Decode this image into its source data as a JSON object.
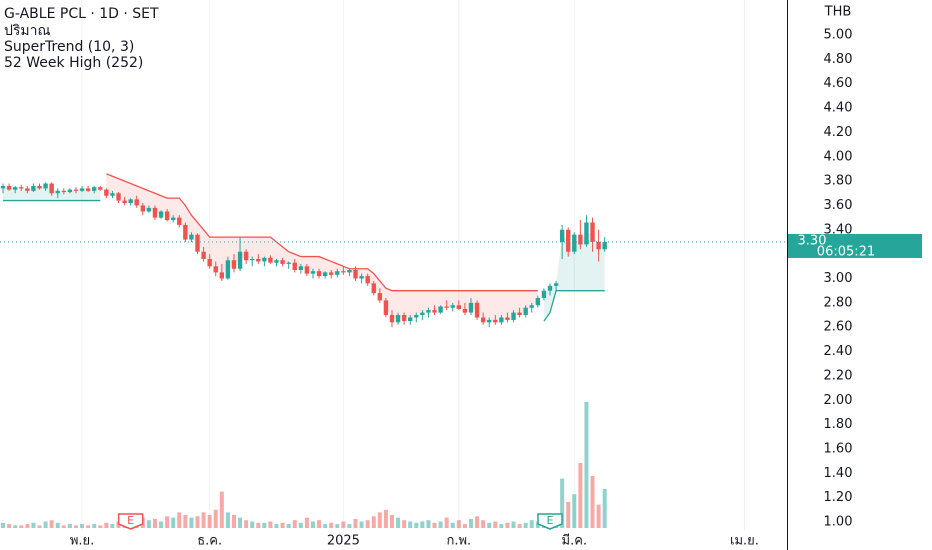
{
  "chart_data": {
    "type": "candlestick",
    "title": "G-ABLE PCL · 1D · SET",
    "legend_items": [
      "ปริมาณ",
      "SuperTrend (10, 3)",
      "52 Week High (252)"
    ],
    "currency": "THB",
    "up_color": "#26a69a",
    "down_color": "#ef5350",
    "ylim": [
      1,
      5
    ],
    "yticks": [
      {
        "value": 1,
        "label": "1.00"
      },
      {
        "value": 1.2,
        "label": "1.20"
      },
      {
        "value": 1.4,
        "label": "1.40"
      },
      {
        "value": 1.6,
        "label": "1.60"
      },
      {
        "value": 1.8,
        "label": "1.80"
      },
      {
        "value": 2,
        "label": "2.00"
      },
      {
        "value": 2.2,
        "label": "2.20"
      },
      {
        "value": 2.4,
        "label": "2.40"
      },
      {
        "value": 2.6,
        "label": "2.60"
      },
      {
        "value": 2.8,
        "label": "2.80"
      },
      {
        "value": 3,
        "label": "3.00"
      },
      {
        "value": 3.2,
        "label": "3.20"
      },
      {
        "value": 3.4,
        "label": "3.40"
      },
      {
        "value": 3.6,
        "label": "3.60"
      },
      {
        "value": 3.8,
        "label": "3.80"
      },
      {
        "value": 4,
        "label": "4.00"
      },
      {
        "value": 4.2,
        "label": "4.20"
      },
      {
        "value": 4.4,
        "label": "4.40"
      },
      {
        "value": 4.6,
        "label": "4.60"
      },
      {
        "value": 4.8,
        "label": "4.80"
      },
      {
        "value": 5,
        "label": "5.00"
      }
    ],
    "xlim": [
      -0.5,
      129
    ],
    "xticks": [
      {
        "value": 13,
        "label": "พ.ย."
      },
      {
        "value": 34,
        "label": "ธ.ค."
      },
      {
        "value": 56,
        "label": "2025"
      },
      {
        "value": 75,
        "label": "ก.พ."
      },
      {
        "value": 94,
        "label": "มี.ค."
      },
      {
        "value": 122,
        "label": "เม.ย."
      }
    ],
    "y2lim": [
      0,
      100
    ],
    "last_price": {
      "value": 3.3,
      "label": "3.30"
    },
    "countdown": "06:05:21",
    "events": [
      {
        "label": "E",
        "x": 21,
        "color": "#ef5350"
      },
      {
        "label": "E",
        "x": 90,
        "color": "#26a69a"
      }
    ],
    "candles": [
      [
        3.74,
        3.78,
        3.7,
        3.76,
        4
      ],
      [
        3.76,
        3.78,
        3.72,
        3.73,
        3
      ],
      [
        3.73,
        3.76,
        3.7,
        3.75,
        2
      ],
      [
        3.75,
        3.77,
        3.72,
        3.74,
        2
      ],
      [
        3.74,
        3.76,
        3.7,
        3.72,
        3
      ],
      [
        3.72,
        3.78,
        3.71,
        3.76,
        4
      ],
      [
        3.76,
        3.78,
        3.73,
        3.74,
        2
      ],
      [
        3.74,
        3.79,
        3.72,
        3.78,
        5
      ],
      [
        3.78,
        3.79,
        3.68,
        3.7,
        6
      ],
      [
        3.7,
        3.74,
        3.66,
        3.72,
        4
      ],
      [
        3.72,
        3.74,
        3.69,
        3.71,
        2
      ],
      [
        3.71,
        3.74,
        3.7,
        3.73,
        3
      ],
      [
        3.73,
        3.75,
        3.7,
        3.72,
        2
      ],
      [
        3.72,
        3.76,
        3.71,
        3.74,
        3
      ],
      [
        3.74,
        3.76,
        3.71,
        3.72,
        2
      ],
      [
        3.72,
        3.76,
        3.7,
        3.75,
        3
      ],
      [
        3.75,
        3.76,
        3.72,
        3.73,
        2
      ],
      [
        3.73,
        3.74,
        3.66,
        3.68,
        4
      ],
      [
        3.68,
        3.72,
        3.66,
        3.7,
        3
      ],
      [
        3.7,
        3.71,
        3.62,
        3.64,
        5
      ],
      [
        3.64,
        3.67,
        3.6,
        3.62,
        6
      ],
      [
        3.62,
        3.66,
        3.6,
        3.65,
        4
      ],
      [
        3.65,
        3.68,
        3.58,
        3.6,
        5
      ],
      [
        3.6,
        3.62,
        3.52,
        3.55,
        8
      ],
      [
        3.55,
        3.6,
        3.54,
        3.58,
        6
      ],
      [
        3.58,
        3.6,
        3.48,
        3.5,
        7
      ],
      [
        3.5,
        3.56,
        3.49,
        3.55,
        5
      ],
      [
        3.55,
        3.57,
        3.47,
        3.48,
        9
      ],
      [
        3.48,
        3.52,
        3.46,
        3.5,
        8
      ],
      [
        3.5,
        3.52,
        3.42,
        3.44,
        12
      ],
      [
        3.44,
        3.46,
        3.3,
        3.32,
        10
      ],
      [
        3.32,
        3.38,
        3.3,
        3.36,
        8
      ],
      [
        3.36,
        3.37,
        3.2,
        3.22,
        9
      ],
      [
        3.22,
        3.26,
        3.14,
        3.16,
        12
      ],
      [
        3.16,
        3.2,
        3.08,
        3.1,
        10
      ],
      [
        3.1,
        3.14,
        3.02,
        3.05,
        14
      ],
      [
        3.05,
        3.12,
        2.98,
        3.0,
        28
      ],
      [
        3.0,
        3.18,
        2.99,
        3.15,
        12
      ],
      [
        3.15,
        3.2,
        3.05,
        3.08,
        10
      ],
      [
        3.08,
        3.34,
        3.06,
        3.22,
        8
      ],
      [
        3.22,
        3.24,
        3.12,
        3.15,
        6
      ],
      [
        3.15,
        3.18,
        3.1,
        3.16,
        5
      ],
      [
        3.16,
        3.2,
        3.12,
        3.14,
        4
      ],
      [
        3.14,
        3.18,
        3.1,
        3.17,
        4
      ],
      [
        3.17,
        3.19,
        3.12,
        3.13,
        5
      ],
      [
        3.13,
        3.16,
        3.1,
        3.15,
        3
      ],
      [
        3.15,
        3.17,
        3.1,
        3.12,
        4
      ],
      [
        3.12,
        3.14,
        3.08,
        3.13,
        3
      ],
      [
        3.13,
        3.16,
        3.05,
        3.07,
        6
      ],
      [
        3.07,
        3.12,
        3.04,
        3.1,
        4
      ],
      [
        3.1,
        3.12,
        3.02,
        3.04,
        8
      ],
      [
        3.04,
        3.08,
        3.0,
        3.06,
        5
      ],
      [
        3.06,
        3.08,
        3.0,
        3.02,
        6
      ],
      [
        3.02,
        3.06,
        3.0,
        3.05,
        3
      ],
      [
        3.05,
        3.07,
        3.0,
        3.03,
        4
      ],
      [
        3.03,
        3.08,
        3.01,
        3.06,
        3
      ],
      [
        3.06,
        3.1,
        3.03,
        3.05,
        5
      ],
      [
        3.05,
        3.08,
        3.02,
        3.07,
        3
      ],
      [
        3.07,
        3.1,
        2.98,
        3.0,
        7
      ],
      [
        3.0,
        3.04,
        2.96,
        3.02,
        5
      ],
      [
        3.02,
        3.04,
        2.94,
        2.96,
        6
      ],
      [
        2.96,
        2.98,
        2.86,
        2.88,
        9
      ],
      [
        2.88,
        2.92,
        2.8,
        2.82,
        12
      ],
      [
        2.82,
        2.84,
        2.68,
        2.7,
        14
      ],
      [
        2.7,
        2.74,
        2.6,
        2.64,
        10
      ],
      [
        2.64,
        2.72,
        2.62,
        2.7,
        8
      ],
      [
        2.7,
        2.72,
        2.62,
        2.65,
        6
      ],
      [
        2.65,
        2.7,
        2.62,
        2.68,
        5
      ],
      [
        2.68,
        2.72,
        2.64,
        2.7,
        4
      ],
      [
        2.7,
        2.74,
        2.66,
        2.72,
        5
      ],
      [
        2.72,
        2.76,
        2.68,
        2.74,
        6
      ],
      [
        2.74,
        2.78,
        2.7,
        2.72,
        4
      ],
      [
        2.72,
        2.78,
        2.71,
        2.77,
        5
      ],
      [
        2.77,
        2.82,
        2.74,
        2.76,
        8
      ],
      [
        2.76,
        2.8,
        2.73,
        2.78,
        4
      ],
      [
        2.78,
        2.82,
        2.74,
        2.75,
        6
      ],
      [
        2.75,
        2.8,
        2.7,
        2.72,
        3
      ],
      [
        2.72,
        2.84,
        2.7,
        2.8,
        7
      ],
      [
        2.8,
        2.82,
        2.66,
        2.68,
        9
      ],
      [
        2.68,
        2.72,
        2.62,
        2.64,
        6
      ],
      [
        2.64,
        2.68,
        2.6,
        2.66,
        4
      ],
      [
        2.66,
        2.7,
        2.62,
        2.64,
        5
      ],
      [
        2.64,
        2.7,
        2.62,
        2.68,
        3
      ],
      [
        2.68,
        2.72,
        2.64,
        2.66,
        4
      ],
      [
        2.66,
        2.74,
        2.64,
        2.72,
        5
      ],
      [
        2.72,
        2.76,
        2.68,
        2.7,
        3
      ],
      [
        2.7,
        2.78,
        2.68,
        2.76,
        4
      ],
      [
        2.76,
        2.8,
        2.72,
        2.78,
        6
      ],
      [
        2.78,
        2.86,
        2.76,
        2.84,
        5
      ],
      [
        2.84,
        2.92,
        2.82,
        2.9,
        7
      ],
      [
        2.9,
        2.96,
        2.86,
        2.94,
        9
      ],
      [
        2.94,
        2.98,
        2.9,
        2.96,
        8
      ],
      [
        3.3,
        3.44,
        3.16,
        3.4,
        38
      ],
      [
        3.4,
        3.42,
        3.18,
        3.22,
        20
      ],
      [
        3.22,
        3.38,
        3.2,
        3.36,
        26
      ],
      [
        3.36,
        3.48,
        3.24,
        3.28,
        50
      ],
      [
        3.28,
        3.52,
        3.26,
        3.46,
        97
      ],
      [
        3.46,
        3.5,
        3.22,
        3.3,
        40
      ],
      [
        3.3,
        3.4,
        3.14,
        3.24,
        18
      ],
      [
        3.24,
        3.34,
        3.22,
        3.3,
        30
      ]
    ],
    "supertrend": {
      "up_color": "#26a69a",
      "down_color": "#ef5350",
      "up": [
        3.64,
        3.64,
        3.64,
        3.64,
        3.64,
        3.64,
        3.64,
        3.64,
        3.64,
        3.64,
        3.64,
        3.64,
        3.64,
        3.64,
        3.64,
        3.64,
        3.64,
        null,
        null,
        null,
        null,
        null,
        null,
        null,
        null,
        null,
        null,
        null,
        null,
        null,
        null,
        null,
        null,
        null,
        null,
        null,
        null,
        null,
        null,
        null,
        null,
        null,
        null,
        null,
        null,
        null,
        null,
        null,
        null,
        null,
        null,
        null,
        null,
        null,
        null,
        null,
        null,
        null,
        null,
        null,
        null,
        null,
        null,
        null,
        null,
        null,
        null,
        null,
        null,
        null,
        null,
        null,
        null,
        null,
        null,
        null,
        null,
        null,
        null,
        null,
        null,
        null,
        null,
        null,
        null,
        null,
        null,
        null,
        null,
        2.65,
        2.72,
        2.9,
        2.9,
        2.9,
        2.9,
        2.9,
        2.9,
        2.9,
        2.9,
        2.9
      ],
      "down": [
        null,
        null,
        null,
        null,
        null,
        null,
        null,
        null,
        null,
        null,
        null,
        null,
        null,
        null,
        null,
        null,
        null,
        3.86,
        3.84,
        3.82,
        3.8,
        3.78,
        3.76,
        3.74,
        3.72,
        3.7,
        3.68,
        3.66,
        3.66,
        3.66,
        3.6,
        3.52,
        3.46,
        3.4,
        3.34,
        3.34,
        3.34,
        3.34,
        3.34,
        3.34,
        3.34,
        3.34,
        3.34,
        3.34,
        3.34,
        3.3,
        3.26,
        3.22,
        3.2,
        3.18,
        3.18,
        3.18,
        3.18,
        3.16,
        3.14,
        3.12,
        3.1,
        3.08,
        3.08,
        3.08,
        3.08,
        3.04,
        2.98,
        2.92,
        2.9,
        2.9,
        2.9,
        2.9,
        2.9,
        2.9,
        2.9,
        2.9,
        2.9,
        2.9,
        2.9,
        2.9,
        2.9,
        2.9,
        2.9,
        2.9,
        2.9,
        2.9,
        2.9,
        2.9,
        2.9,
        2.9,
        2.9,
        2.9,
        2.9,
        null,
        null,
        null,
        null,
        null,
        null,
        null,
        null,
        null,
        null,
        null
      ]
    }
  }
}
